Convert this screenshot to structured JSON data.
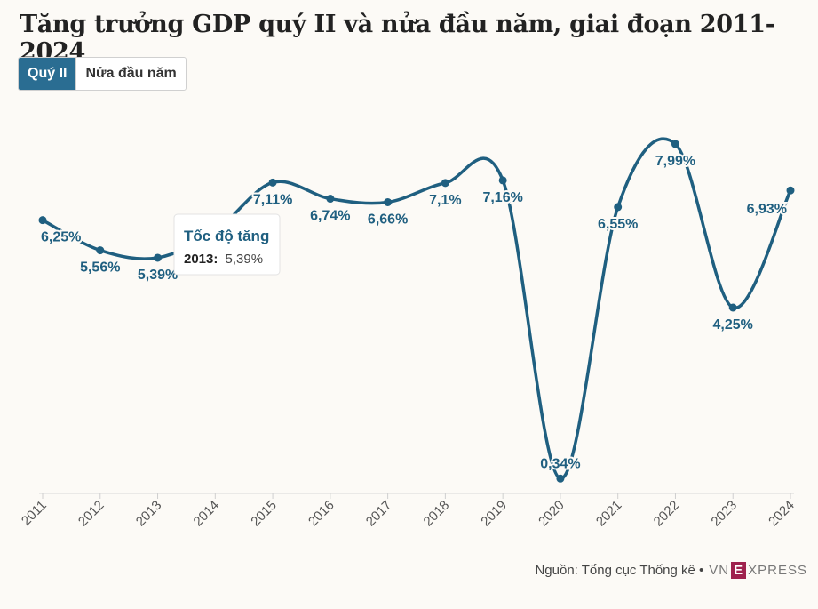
{
  "title": "Tăng trưởng GDP quý II và nửa đầu năm, giai đoạn 2011-2024",
  "tabs": [
    {
      "label": "Quý II",
      "active": true
    },
    {
      "label": "Nửa đầu năm",
      "active": false
    }
  ],
  "tooltip": {
    "heading": "Tốc độ tăng",
    "year": "2013:",
    "value": "5,39%"
  },
  "footer": {
    "source": "Nguồn: Tổng cục Thống kê •",
    "logo_left": "VN",
    "logo_mid": "E",
    "logo_right": "XPRESS"
  },
  "colors": {
    "line": "#1f5f80",
    "label": "#1f5f80",
    "tab_active": "#2a6d92",
    "background": "#fcfaf6"
  },
  "chart_data": {
    "type": "line",
    "title": "Tăng trưởng GDP quý II và nửa đầu năm, giai đoạn 2011-2024",
    "categories": [
      "2011",
      "2012",
      "2013",
      "2014",
      "2015",
      "2016",
      "2017",
      "2018",
      "2019",
      "2020",
      "2021",
      "2022",
      "2023",
      "2024"
    ],
    "values": [
      6.25,
      5.56,
      5.39,
      6.0,
      7.11,
      6.74,
      6.66,
      7.1,
      7.16,
      0.34,
      6.55,
      7.99,
      4.25,
      6.93
    ],
    "data_labels": [
      "6,25%",
      "5,56%",
      "5,39%",
      "",
      "7,11%",
      "6,74%",
      "6,66%",
      "7,1%",
      "7,16%",
      "0,34%",
      "6,55%",
      "7,99%",
      "4,25%",
      "6,93%"
    ],
    "label_position": [
      "below",
      "below",
      "below",
      "none",
      "below",
      "below",
      "below",
      "below",
      "below",
      "above",
      "below",
      "below",
      "below",
      "above"
    ],
    "ylim": [
      0,
      8.5
    ],
    "xlabel": "",
    "ylabel": "",
    "grid": false,
    "smooth": true
  }
}
